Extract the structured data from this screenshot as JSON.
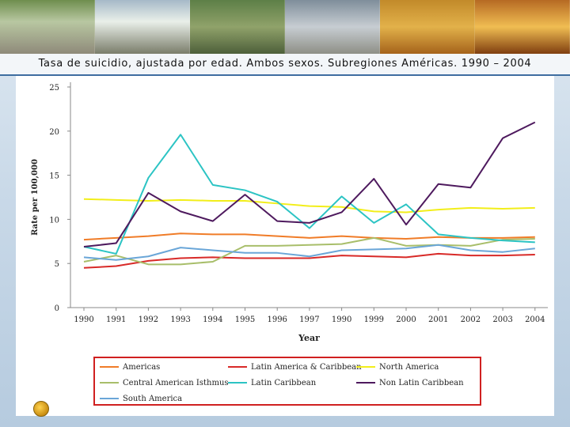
{
  "slide": {
    "title": "Tasa de suicidio, ajustada por edad. Ambos sexos. Subregiones Américas. 1990 – 2004"
  },
  "chart_data": {
    "type": "line",
    "xlabel": "Year",
    "ylabel": "Rate per 100,000",
    "ylim": [
      0,
      25
    ],
    "yticks": [
      "0",
      "5",
      "10",
      "15",
      "20",
      "25"
    ],
    "categories": [
      "1990",
      "1991",
      "1992",
      "1993",
      "1994",
      "1995",
      "1996",
      "1997",
      "1990",
      "1999",
      "2000",
      "2001",
      "2002",
      "2003",
      "2004"
    ],
    "grid": false,
    "legend_position": "bottom",
    "series": [
      {
        "name": "Americas",
        "color": "#f07c28",
        "values": [
          7.7,
          7.9,
          8.1,
          8.4,
          8.3,
          8.3,
          8.1,
          7.9,
          8.1,
          7.9,
          7.8,
          8.0,
          7.9,
          7.9,
          8.0
        ]
      },
      {
        "name": "Latin America & Caribbean",
        "color": "#d82a28",
        "values": [
          4.5,
          4.7,
          5.3,
          5.6,
          5.7,
          5.6,
          5.6,
          5.6,
          5.9,
          5.8,
          5.7,
          6.1,
          5.9,
          5.9,
          6.0
        ]
      },
      {
        "name": "North America",
        "color": "#f2ee1a",
        "values": [
          12.3,
          12.2,
          12.1,
          12.2,
          12.1,
          12.1,
          11.8,
          11.5,
          11.4,
          10.9,
          10.8,
          11.1,
          11.3,
          11.2,
          11.3
        ]
      },
      {
        "name": "Central American Isthmus",
        "color": "#a8be6a",
        "values": [
          5.2,
          5.9,
          4.9,
          4.9,
          5.2,
          7.0,
          7.0,
          7.1,
          7.2,
          7.9,
          7.0,
          7.1,
          7.0,
          7.7,
          7.8
        ]
      },
      {
        "name": "Latin Caribbean",
        "color": "#2cc4c4",
        "values": [
          6.9,
          6.1,
          14.7,
          19.6,
          13.9,
          13.3,
          12.0,
          9.0,
          12.6,
          9.6,
          11.7,
          8.3,
          7.9,
          7.6,
          7.4
        ]
      },
      {
        "name": "Non Latin Caribbean",
        "color": "#4e1a5e",
        "values": [
          6.9,
          7.3,
          13.0,
          10.9,
          9.8,
          12.8,
          9.8,
          9.6,
          10.8,
          14.6,
          9.4,
          14.0,
          13.6,
          19.2,
          21.0
        ]
      },
      {
        "name": "South America",
        "color": "#6aa6d8",
        "values": [
          5.7,
          5.4,
          5.8,
          6.8,
          6.5,
          6.2,
          6.2,
          5.8,
          6.5,
          6.6,
          6.7,
          7.1,
          6.5,
          6.3,
          6.7
        ]
      }
    ]
  }
}
